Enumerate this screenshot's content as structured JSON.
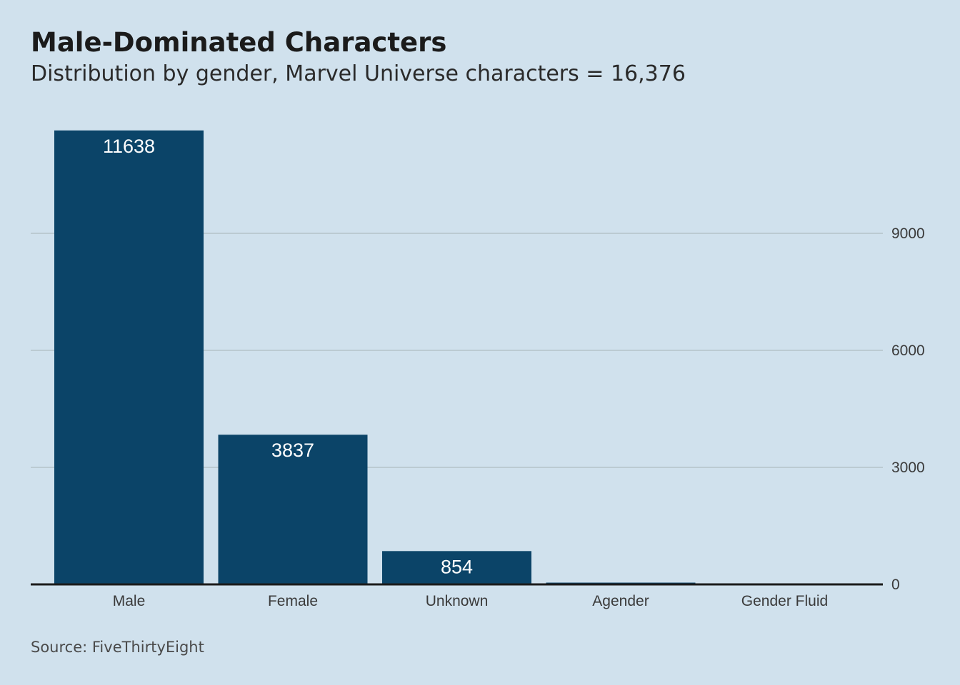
{
  "header": {
    "title": "Male-Dominated Characters",
    "subtitle": "Distribution by gender, Marvel Universe characters = 16,376"
  },
  "footer": {
    "source": "Source: FiveThirtyEight"
  },
  "colors": {
    "background": "#d0e1ed",
    "bar": "#0b4468",
    "bar_label": "#ffffff",
    "grid": "#aebcc3",
    "baseline": "#1b1b1b",
    "tick_text": "#3a3a3a"
  },
  "chart_data": {
    "type": "bar",
    "title": "Male-Dominated Characters",
    "subtitle": "Distribution by gender, Marvel Universe characters = 16,376",
    "xlabel": "",
    "ylabel": "",
    "categories": [
      "Male",
      "Female",
      "Unknown",
      "Agender",
      "Gender Fluid"
    ],
    "values": [
      11638,
      3837,
      854,
      45,
      2
    ],
    "data_labels": [
      "11638",
      "3837",
      "854",
      "",
      ""
    ],
    "ylim": [
      0,
      12000
    ],
    "yticks": [
      0,
      3000,
      6000,
      9000
    ],
    "ytick_labels": [
      "0",
      "3000",
      "6000",
      "9000"
    ],
    "y_axis_side": "right",
    "grid": true,
    "legend": "none"
  }
}
